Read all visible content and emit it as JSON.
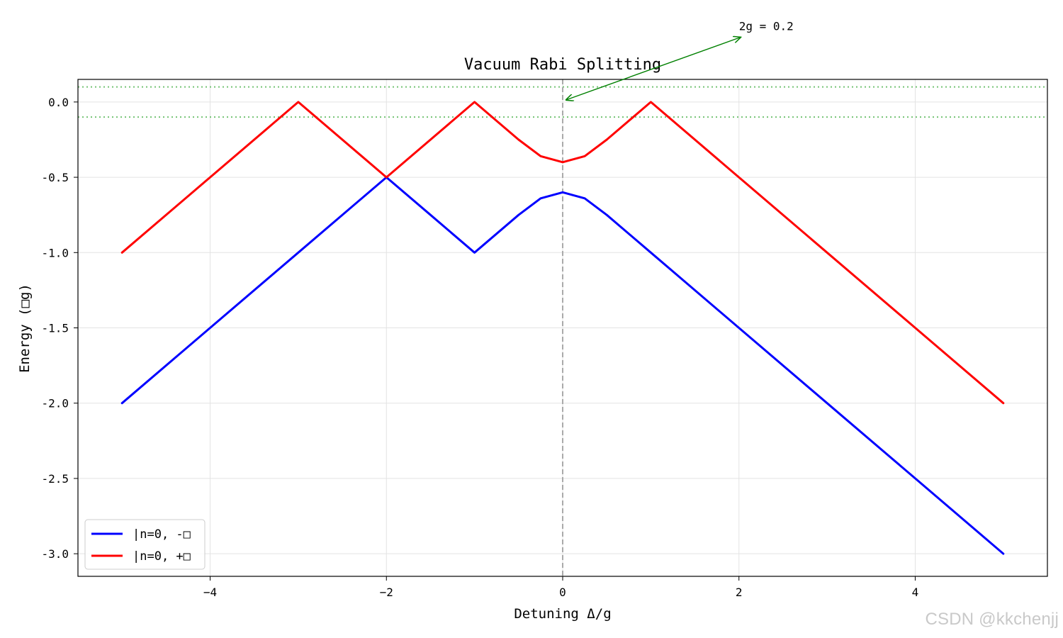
{
  "chart_data": {
    "type": "line",
    "title": "Vacuum Rabi Splitting",
    "xlabel": "Detuning Δ/g",
    "ylabel": "Energy (□g)",
    "xlim": [
      -5.5,
      5.5
    ],
    "ylim": [
      -3.15,
      0.15
    ],
    "xticks": [
      -4,
      -2,
      0,
      2,
      4
    ],
    "xtick_labels": [
      "−4",
      "−2",
      "0",
      "2",
      "4"
    ],
    "yticks": [
      0.0,
      -0.5,
      -1.0,
      -1.5,
      -2.0,
      -2.5,
      -3.0
    ],
    "ytick_labels": [
      "0.0",
      "-0.5",
      "-1.0",
      "-1.5",
      "-2.0",
      "-2.5",
      "-3.0"
    ],
    "grid": true,
    "legend_position": "lower-left",
    "series": [
      {
        "name": "|n=0, -□",
        "color": "#0000ff",
        "x": [
          -5,
          -4,
          -3,
          -2,
          -1.5,
          -1,
          -0.5,
          -0.25,
          0,
          0.25,
          0.5,
          1,
          2,
          3,
          4,
          5
        ],
        "values": [
          -2,
          -1.5,
          -1,
          -0.5,
          -0.75,
          -1,
          -0.75,
          -0.64,
          -0.6,
          -0.64,
          -0.75,
          -1,
          -1.5,
          -2,
          -2.5,
          -3
        ]
      },
      {
        "name": "|n=0, +□",
        "color": "#ff0000",
        "x": [
          -5,
          -4,
          -3,
          -2,
          -1,
          -0.5,
          -0.25,
          0,
          0.25,
          0.5,
          1,
          2,
          3,
          4,
          5
        ],
        "values": [
          -1,
          -0.5,
          0,
          -0.5,
          0,
          -0.25,
          -0.36,
          -0.4,
          -0.36,
          -0.25,
          0,
          -0.5,
          -1,
          -1.5,
          -2
        ]
      }
    ],
    "reference_lines": {
      "horizontal": [
        0.1,
        -0.1
      ],
      "horizontal_color": "#5cb85c",
      "vertical": [
        0
      ],
      "vertical_color": "#aaaaaa"
    },
    "annotation": {
      "text": "2g = 0.2",
      "color": "#008000",
      "point": [
        0,
        0.0
      ],
      "text_position": [
        2,
        0.5
      ]
    }
  },
  "watermark": "CSDN @kkchenjj"
}
